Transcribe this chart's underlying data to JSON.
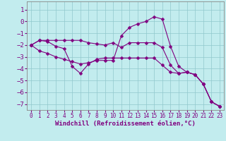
{
  "title": "",
  "xlabel": "Windchill (Refroidissement éolien,°C)",
  "ylabel": "",
  "xlim": [
    -0.5,
    23.5
  ],
  "ylim": [
    -7.5,
    1.7
  ],
  "yticks": [
    1,
    0,
    -1,
    -2,
    -3,
    -4,
    -5,
    -6,
    -7
  ],
  "xticks": [
    0,
    1,
    2,
    3,
    4,
    5,
    6,
    7,
    8,
    9,
    10,
    11,
    12,
    13,
    14,
    15,
    16,
    17,
    18,
    19,
    20,
    21,
    22,
    23
  ],
  "background_color": "#c2ecee",
  "line_color": "#800080",
  "grid_color": "#90c8cc",
  "line1_x": [
    0,
    1,
    2,
    3,
    4,
    5,
    6,
    7,
    8,
    9,
    10,
    11,
    12,
    13,
    14,
    15,
    16,
    17,
    18,
    19,
    20,
    21,
    22,
    23
  ],
  "line1_y": [
    -2.0,
    -1.6,
    -1.6,
    -1.6,
    -1.6,
    -1.6,
    -1.6,
    -1.8,
    -1.9,
    -2.0,
    -1.8,
    -2.2,
    -1.8,
    -1.8,
    -1.8,
    -1.8,
    -2.2,
    -3.7,
    -4.4,
    -4.3,
    -4.5,
    -5.3,
    -6.8,
    -7.2
  ],
  "line2_x": [
    0,
    1,
    2,
    3,
    4,
    5,
    6,
    7,
    8,
    9,
    10,
    11,
    12,
    13,
    14,
    15,
    16,
    17,
    18,
    19,
    20,
    21,
    22,
    23
  ],
  "line2_y": [
    -2.0,
    -1.6,
    -1.7,
    -2.1,
    -2.3,
    -3.8,
    -4.4,
    -3.6,
    -3.2,
    -3.1,
    -3.1,
    -3.1,
    -3.1,
    -3.1,
    -3.1,
    -3.1,
    -3.7,
    -4.3,
    -4.4,
    -4.3,
    -4.5,
    -5.3,
    -6.8,
    -7.2
  ],
  "line3_x": [
    0,
    1,
    2,
    3,
    4,
    5,
    6,
    7,
    8,
    9,
    10,
    11,
    12,
    13,
    14,
    15,
    16,
    17,
    18,
    19,
    20,
    21,
    22,
    23
  ],
  "line3_y": [
    -2.0,
    -2.5,
    -2.7,
    -3.0,
    -3.2,
    -3.4,
    -3.6,
    -3.5,
    -3.3,
    -3.3,
    -3.3,
    -1.2,
    -0.5,
    -0.2,
    0.0,
    0.4,
    0.2,
    -2.1,
    -3.8,
    -4.3,
    -4.5,
    -5.3,
    -6.8,
    -7.2
  ],
  "xlabel_fontsize": 6.5,
  "ytick_fontsize": 6.5,
  "xtick_fontsize": 5.5
}
